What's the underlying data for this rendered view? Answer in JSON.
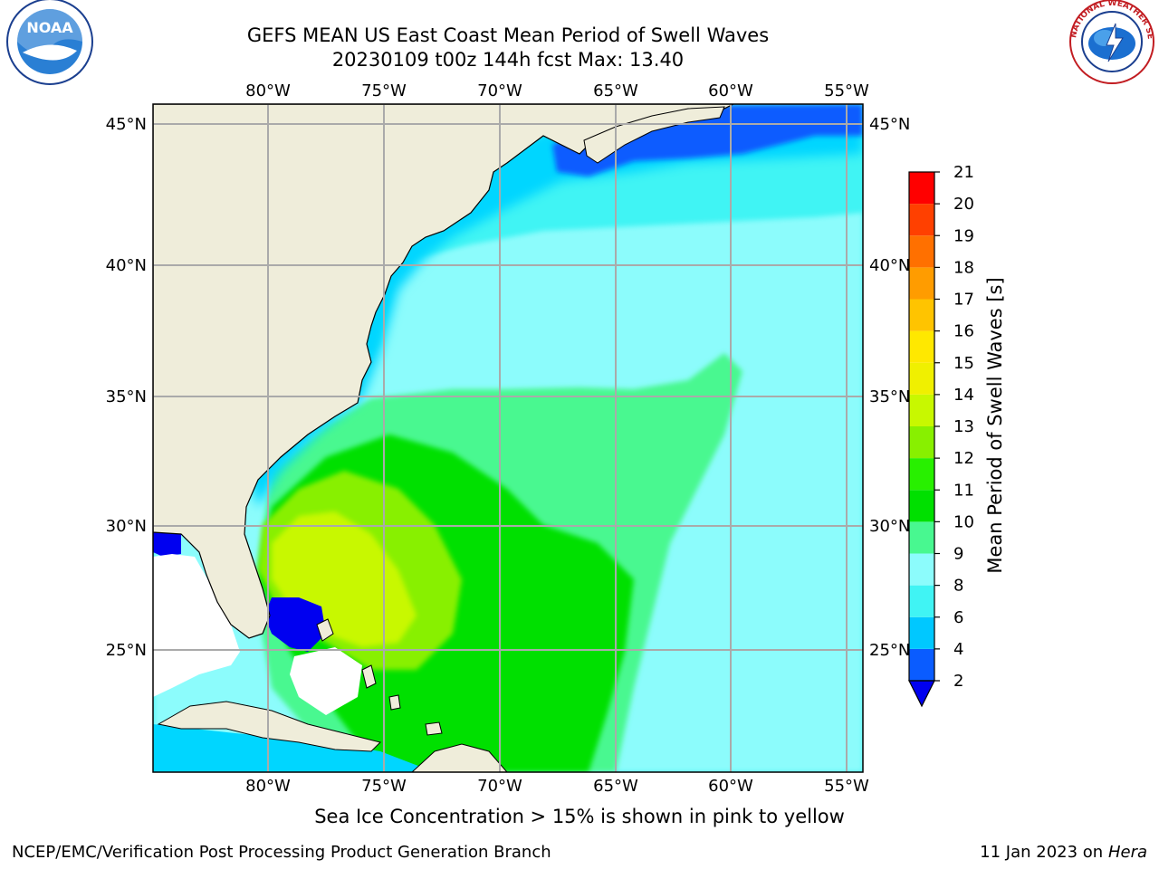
{
  "title_line1": "GEFS MEAN US East Coast Mean Period of Swell Waves",
  "title_line2": "20230109 t00z 144h fcst   Max: 13.40",
  "note": "Sea Ice Concentration > 15% is shown in pink to yellow",
  "footer_left": "NCEP/EMC/Verification Post Processing Product Generation Branch",
  "footer_date": "11 Jan 2023 on",
  "footer_host": "Hera",
  "logos": {
    "left": "NOAA",
    "right": "NATIONAL WEATHER SERVICE"
  },
  "map": {
    "lon_labels": [
      "80°W",
      "75°W",
      "70°W",
      "65°W",
      "60°W",
      "55°W"
    ],
    "lat_labels": [
      "45°N",
      "40°N",
      "35°N",
      "30°N",
      "25°N"
    ],
    "land_color": "#efedda",
    "ocean_base": "#3cf0f0"
  },
  "colorbar": {
    "label": "Mean Period of Swell Waves [s]",
    "ticks": [
      "2",
      "4",
      "6",
      "8",
      "9",
      "10",
      "11",
      "12",
      "13",
      "14",
      "15",
      "16",
      "17",
      "18",
      "19",
      "20",
      "21"
    ],
    "colors": [
      "#0a5cff",
      "#00c8ff",
      "#40f4f4",
      "#8cfcfc",
      "#48f890",
      "#00e000",
      "#28f000",
      "#88f000",
      "#c8f800",
      "#f0f000",
      "#ffe800",
      "#ffc400",
      "#ff9c00",
      "#ff7000",
      "#ff4000",
      "#ff0000"
    ],
    "under_color": "#0000f0"
  }
}
